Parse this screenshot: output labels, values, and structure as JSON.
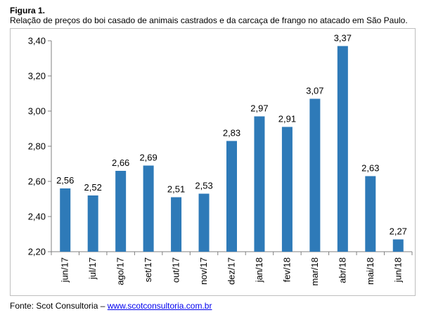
{
  "figure": {
    "label": "Figura 1.",
    "caption": "Relação de preços do boi casado de animais castrados e da carcaça de frango no atacado em São Paulo."
  },
  "footer": {
    "source_prefix": "Fonte: Scot Consultoria – ",
    "source_link": "www.scotconsultoria.com.br"
  },
  "chart_data": {
    "type": "bar",
    "title": "",
    "xlabel": "",
    "ylabel": "",
    "categories": [
      "jun/17",
      "jul/17",
      "ago/17",
      "set/17",
      "out/17",
      "nov/17",
      "dez/17",
      "jan/18",
      "fev/18",
      "mar/18",
      "abr/18",
      "mai/18",
      "jun/18"
    ],
    "values": [
      2.56,
      2.52,
      2.66,
      2.69,
      2.51,
      2.53,
      2.83,
      2.97,
      2.91,
      3.07,
      3.37,
      2.63,
      2.27
    ],
    "value_labels": [
      "2,56",
      "2,52",
      "2,66",
      "2,69",
      "2,51",
      "2,53",
      "2,83",
      "2,97",
      "2,91",
      "3,07",
      "3,37",
      "2,63",
      "2,27"
    ],
    "ylim": [
      2.2,
      3.4
    ],
    "yticks": [
      2.2,
      2.4,
      2.6,
      2.8,
      3.0,
      3.2,
      3.4
    ],
    "ytick_labels": [
      "2,20",
      "2,40",
      "2,60",
      "2,80",
      "3,00",
      "3,20",
      "3,40"
    ],
    "grid": false,
    "legend": "none",
    "bar_color": "#2e7ab8"
  }
}
